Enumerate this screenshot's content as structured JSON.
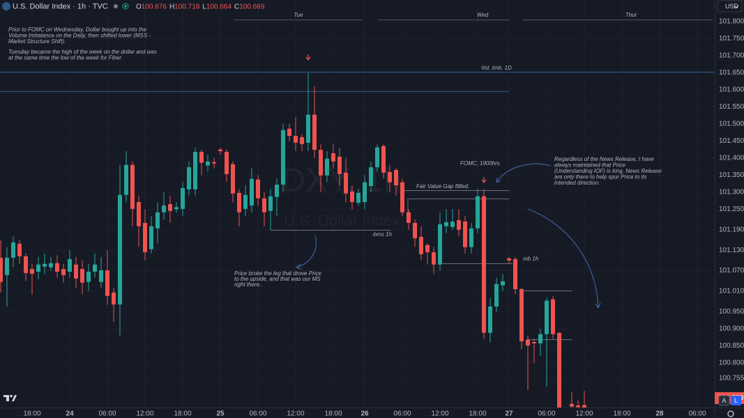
{
  "chart_data": {
    "type": "candlestick",
    "title": "U.S. Dollar Index · 1h · TVC",
    "ohlc_prefixes": [
      "O",
      "H",
      "L",
      "C"
    ],
    "currency": "USD",
    "scale_buttons": [
      "A",
      "L"
    ],
    "watermark": [
      "DXY, 1h",
      "U.S. Dollar Index"
    ],
    "day_labels": [
      "Tue",
      "Wed",
      "Thur"
    ],
    "up_color": "#26a69a",
    "down_color": "#ef5350",
    "ylim": [
      100.669,
      101.863
    ],
    "yticks": [
      {
        "value": 101.8,
        "label": "101.800"
      },
      {
        "value": 101.75,
        "label": "101.750"
      },
      {
        "value": 101.7,
        "label": "101.700"
      },
      {
        "value": 101.65,
        "label": "101.650"
      },
      {
        "value": 101.6,
        "label": "101.600"
      },
      {
        "value": 101.55,
        "label": "101.550"
      },
      {
        "value": 101.5,
        "label": "101.500"
      },
      {
        "value": 101.45,
        "label": "101.450"
      },
      {
        "value": 101.4,
        "label": "101.400"
      },
      {
        "value": 101.35,
        "label": "101.350"
      },
      {
        "value": 101.3,
        "label": "101.300"
      },
      {
        "value": 101.25,
        "label": "101.250"
      },
      {
        "value": 101.19,
        "label": "101.190"
      },
      {
        "value": 101.13,
        "label": "101.130"
      },
      {
        "value": 101.07,
        "label": "101.070"
      },
      {
        "value": 101.01,
        "label": "101.010"
      },
      {
        "value": 100.95,
        "label": "100.950"
      },
      {
        "value": 100.9,
        "label": "100.900"
      },
      {
        "value": 100.85,
        "label": "100.850"
      },
      {
        "value": 100.8,
        "label": "100.800"
      },
      {
        "value": 100.755,
        "label": "100.755"
      }
    ],
    "categories": [
      null,
      null,
      null,
      null,
      null,
      "18:00",
      null,
      null,
      null,
      null,
      null,
      "24",
      null,
      null,
      null,
      null,
      null,
      "06:00",
      null,
      null,
      null,
      null,
      null,
      "12:00",
      null,
      null,
      null,
      null,
      null,
      "18:00",
      null,
      null,
      null,
      null,
      null,
      "25",
      null,
      null,
      null,
      null,
      null,
      "06:00",
      null,
      null,
      null,
      null,
      null,
      "12:00",
      null,
      null,
      null,
      null,
      null,
      "18:00",
      null,
      null,
      null,
      null,
      "26",
      null,
      null,
      null,
      null,
      null,
      "06:00",
      null,
      null,
      null,
      null,
      null,
      "12:00",
      null,
      null,
      null,
      null,
      null,
      "18:00",
      null,
      null,
      null,
      null,
      "27",
      null,
      null,
      null,
      null,
      null,
      "06:00",
      null,
      null,
      null,
      null,
      null,
      "12:00",
      null,
      null,
      null,
      null,
      null,
      "18:00",
      null,
      null,
      null,
      null,
      null,
      "28",
      null,
      null,
      null,
      null,
      null,
      "06:00"
    ],
    "open": [
      101.108,
      101.057,
      101.108,
      101.149,
      101.112,
      101.075,
      101.067,
      101.082,
      101.08,
      101.092,
      101.075,
      101.067,
      101.088,
      101.075,
      101.037,
      101.067,
      101.037,
      101.071,
      101.006,
      100.971,
      101.292,
      101.38,
      101.271,
      101.21,
      101.133,
      101.194,
      101.241,
      101.265,
      101.25,
      101.251,
      101.308,
      101.308,
      101.418,
      101.378,
      101.388,
      101.425,
      101.418,
      101.382,
      101.298,
      101.251,
      101.261,
      101.337,
      101.282,
      101.245,
      101.286,
      101.322,
      101.486,
      101.465,
      101.461,
      101.445,
      101.527,
      101.424,
      101.349,
      101.414,
      101.404,
      101.357,
      101.302,
      101.269,
      101.271,
      101.318,
      101.373,
      101.435,
      101.359,
      101.365,
      101.329,
      101.241,
      101.21,
      101.169,
      101.145,
      101.124,
      101.088,
      101.2,
      101.198,
      101.218,
      101.214,
      101.139,
      101.194,
      101.288,
      100.888,
      100.965,
      101.027,
      101.106,
      101.104,
      101.016,
      100.867,
      100.861,
      100.857,
      100.884,
      100.986,
      100.888,
      null,
      100.68,
      100.675,
      100.676,
      null,
      null,
      null,
      null,
      null,
      null,
      null,
      null,
      null,
      null,
      null,
      null,
      null,
      null,
      null,
      null,
      null,
      null
    ],
    "high": [
      101.159,
      101.139,
      101.17,
      101.16,
      101.12,
      101.09,
      101.11,
      101.12,
      101.11,
      101.115,
      101.09,
      101.13,
      101.11,
      101.1,
      101.09,
      101.12,
      101.11,
      101.13,
      101.02,
      101.38,
      101.42,
      101.39,
      101.29,
      101.25,
      101.23,
      101.27,
      101.3,
      101.29,
      101.27,
      101.33,
      101.39,
      101.43,
      101.425,
      101.41,
      101.4,
      101.43,
      101.425,
      101.39,
      101.31,
      101.32,
      101.37,
      101.35,
      101.3,
      101.31,
      101.34,
      101.5,
      101.5,
      101.52,
      101.47,
      101.65,
      101.61,
      101.44,
      101.42,
      101.44,
      101.43,
      101.4,
      101.32,
      101.31,
      101.35,
      101.39,
      101.44,
      101.44,
      101.38,
      101.37,
      101.34,
      101.25,
      101.22,
      101.2,
      101.15,
      101.14,
      101.24,
      101.25,
      101.25,
      101.25,
      101.23,
      101.21,
      101.31,
      101.31,
      100.99,
      101.05,
      101.06,
      101.11,
      101.11,
      101.02,
      100.88,
      100.87,
      100.9,
      100.99,
      100.995,
      100.89,
      null,
      100.715,
      100.69,
      100.718,
      null,
      null,
      null,
      null,
      null,
      null,
      null,
      null,
      null,
      null,
      null,
      null,
      null,
      null,
      null,
      null,
      null,
      null
    ],
    "low": [
      101.006,
      100.965,
      101.08,
      101.09,
      101.04,
      101.0,
      101.045,
      101.06,
      101.07,
      101.05,
      101.035,
      101.05,
      101.02,
      101.0,
      101.01,
      101.05,
      101.02,
      100.97,
      100.92,
      100.88,
      101.27,
      101.2,
      101.14,
      101.1,
      101.12,
      101.15,
      101.22,
      101.21,
      101.24,
      101.23,
      101.29,
      101.29,
      101.35,
      101.36,
      101.37,
      101.41,
      101.33,
      101.27,
      101.2,
      101.23,
      101.24,
      101.26,
      101.2,
      101.19,
      101.23,
      101.3,
      101.45,
      101.42,
      101.42,
      101.42,
      101.4,
      101.3,
      101.33,
      101.37,
      101.32,
      101.27,
      101.25,
      101.26,
      101.25,
      101.3,
      101.36,
      101.34,
      101.3,
      101.29,
      101.23,
      101.19,
      101.14,
      101.1,
      101.09,
      101.06,
      101.07,
      101.18,
      101.19,
      101.17,
      101.12,
      101.12,
      101.18,
      100.87,
      100.86,
      100.95,
      101.01,
      101.09,
      101.0,
      100.84,
      100.72,
      100.8,
      100.82,
      100.73,
      100.87,
      100.64,
      null,
      100.66,
      100.665,
      100.664,
      null,
      null,
      null,
      null,
      null,
      null,
      null,
      null,
      null,
      null,
      null,
      null,
      null,
      null,
      null,
      null,
      null,
      null
    ],
    "close": [
      101.037,
      101.108,
      101.153,
      101.112,
      101.063,
      101.061,
      101.088,
      101.09,
      101.092,
      101.067,
      101.057,
      101.104,
      101.047,
      101.035,
      101.067,
      101.088,
      101.071,
      100.996,
      100.971,
      101.292,
      101.38,
      101.251,
      101.2,
      101.124,
      101.2,
      101.241,
      101.261,
      101.245,
      101.256,
      101.312,
      101.373,
      101.418,
      101.386,
      101.39,
      101.384,
      101.42,
      101.353,
      101.296,
      101.241,
      101.292,
      101.339,
      101.282,
      101.241,
      101.288,
      101.322,
      101.482,
      101.465,
      101.445,
      101.441,
      101.527,
      101.424,
      101.349,
      101.398,
      101.39,
      101.353,
      101.296,
      101.271,
      101.298,
      101.329,
      101.373,
      101.431,
      101.357,
      101.329,
      101.32,
      101.241,
      101.21,
      101.165,
      101.118,
      101.124,
      101.088,
      101.206,
      101.212,
      101.214,
      101.19,
      101.139,
      101.194,
      101.288,
      100.888,
      100.965,
      101.031,
      101.039,
      101.1,
      101.016,
      100.863,
      100.851,
      100.857,
      100.884,
      100.982,
      100.884,
      100.66,
      null,
      100.672,
      100.67,
      100.669,
      null,
      null,
      null,
      null,
      null,
      null,
      null,
      null,
      null,
      null,
      null,
      null,
      null,
      null,
      null,
      null,
      null,
      null
    ],
    "notes": [
      [
        "Prior to FOMC on Wednesday, Dollar bought up into the",
        "Volume Imbalance on the Daily, then shifted lower (MSS -",
        "Market Structure Shift)."
      ],
      [
        "Tuesday became the high of the week on the dollar and was",
        "at the same time the low of the week for Fiber."
      ],
      [
        "Price broke the leg that drove Price",
        "to the upside, and that was our MS",
        "right there.."
      ],
      [
        "Regardless of the News Release, I have",
        "always maintained that Price",
        "(Understanding IOF) is king. News Release",
        "are only there to help spur Price to its",
        "intended direction."
      ]
    ],
    "level_labels": [
      "Vol. Imb. 1D",
      "Fair Value Gap fillled.",
      "-bms 1h",
      "mb 1h",
      "FOMC, 1900hrs"
    ]
  }
}
